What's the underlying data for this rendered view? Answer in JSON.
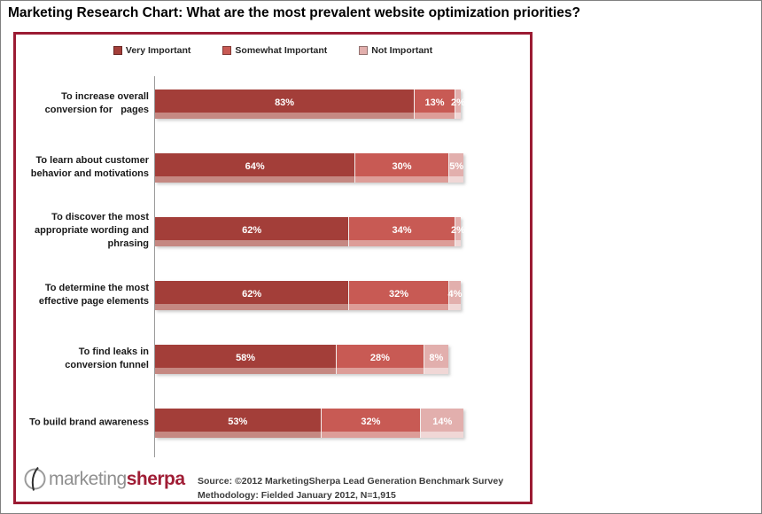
{
  "page": {
    "title": "Marketing Research Chart: What are the most prevalent website optimization priorities?"
  },
  "colors": {
    "panel_border": "#9b1b33",
    "very_important": "#a33e39",
    "somewhat_important": "#c85a54",
    "not_important": "#e2afad",
    "axis_line": "#9a9a9a",
    "logo_gray": "#8f8f8f",
    "logo_red": "#a01d35"
  },
  "chart_data": {
    "type": "bar",
    "orientation": "horizontal",
    "stacked": true,
    "unit": "percent",
    "xlim": [
      0,
      100
    ],
    "grid": false,
    "legend_position": "top",
    "title": "Marketing Research Chart: What are the most prevalent website optimization priorities?",
    "categories": [
      "To increase overall conversion for  pages",
      "To learn about customer behavior and motivations",
      "To discover the most appropriate wording and phrasing",
      "To determine the most effective page elements",
      "To find leaks in conversion funnel",
      "To build brand awareness"
    ],
    "category_lines": [
      [
        "To increase overall",
        "conversion for   pages"
      ],
      [
        "To learn about customer",
        "behavior and motivations"
      ],
      [
        "To discover the most",
        "appropriate wording and",
        "phrasing"
      ],
      [
        "To determine the most",
        "effective page elements"
      ],
      [
        "To find leaks in",
        "conversion funnel"
      ],
      [
        "To build brand awareness"
      ]
    ],
    "series": [
      {
        "name": "Very Important",
        "color": "#a33e39",
        "bevel_color": "#c58882",
        "values": [
          83,
          64,
          62,
          62,
          58,
          53
        ]
      },
      {
        "name": "Somewhat Important",
        "color": "#c85a54",
        "bevel_color": "#dd9d98",
        "values": [
          13,
          30,
          34,
          32,
          28,
          32
        ]
      },
      {
        "name": "Not Important",
        "color": "#e2afad",
        "bevel_color": "#f0d7d6",
        "values": [
          2,
          5,
          2,
          4,
          8,
          14
        ]
      }
    ]
  },
  "footer": {
    "logo": {
      "icon": "compass-circle-icon",
      "text_gray": "marketing",
      "text_red": "sherpa"
    },
    "source_line1": "Source: ©2012 MarketingSherpa Lead Generation Benchmark Survey",
    "source_line2": "Methodology: Fielded January 2012, N=1,915"
  }
}
